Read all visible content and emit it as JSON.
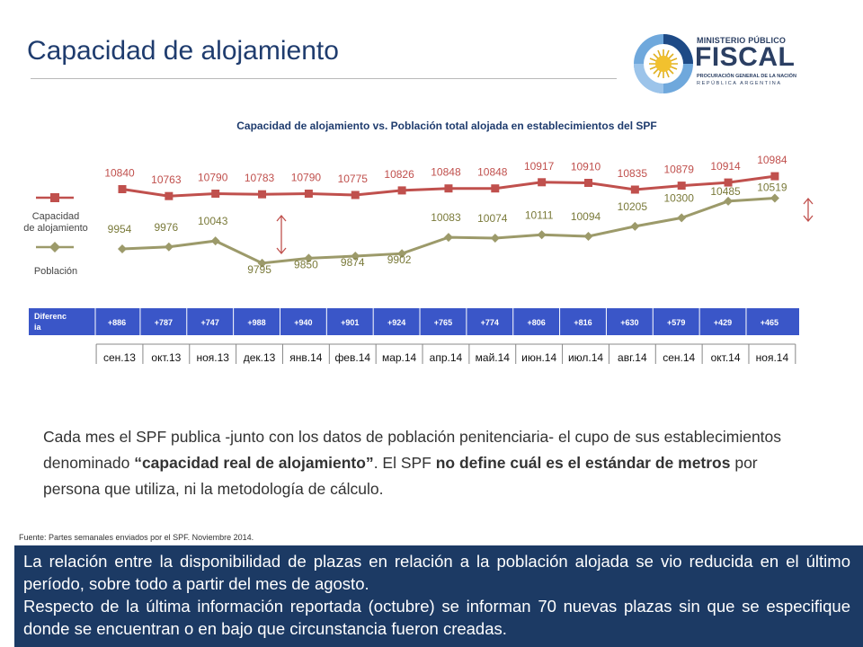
{
  "page": {
    "title": "Capacidad de alojamiento",
    "source": "Fuente: Partes semanales enviados por el SPF. Noviembre 2014."
  },
  "logo": {
    "line1": "MINISTERIO PÚBLICO",
    "line2": "FISCAL",
    "line3": "PROCURACIÓN GENERAL DE LA NACIÓN",
    "line4": "REPÚBLICA ARGENTINA"
  },
  "paragraph": {
    "part1": "Cada mes el SPF publica -junto con los datos de población penitenciaria- el cupo de sus establecimientos denominado ",
    "bold1": "“capacidad real de alojamiento”",
    "part2": ". El SPF ",
    "bold2": "no define cuál es el estándar de metros",
    "part3": " por persona que utiliza, ni la metodología de cálculo."
  },
  "bottom_box": {
    "p1": "La relación entre la disponibilidad de plazas en relación a la población alojada se vio reducida en el último período, sobre todo a partir del mes de agosto.",
    "p2": "Respecto de la última información reportada (octubre) se informan 70 nuevas plazas sin que se especifique donde se encuentran o en bajo que circunstancia fueron creadas."
  },
  "colors": {
    "capacity": "#c0504d",
    "population": "#9c9a6a",
    "table_header": "#3a56c8",
    "title": "#1f3c6e",
    "box": "#1c3a64"
  },
  "chart_data": {
    "type": "line",
    "title": "Capacidad de alojamiento vs. Población total alojada en establecimientos del SPF",
    "categories": [
      "сен.13",
      "окт.13",
      "ноя.13",
      "дек.13",
      "янв.14",
      "фев.14",
      "мар.14",
      "апр.14",
      "май.14",
      "июн.14",
      "июл.14",
      "авг.14",
      "сен.14",
      "окт.14",
      "ноя.14"
    ],
    "series": [
      {
        "name": "Capacidad de alojamiento",
        "color": "#c0504d",
        "values": [
          10840,
          10763,
          10790,
          10783,
          10790,
          10775,
          10826,
          10848,
          10848,
          10917,
          10910,
          10835,
          10879,
          10914,
          10984
        ]
      },
      {
        "name": "Población",
        "color": "#9c9a6a",
        "values": [
          9954,
          9976,
          10043,
          9795,
          9850,
          9874,
          9902,
          10083,
          10074,
          10111,
          10094,
          10205,
          10300,
          10485,
          10519
        ]
      }
    ],
    "difference": {
      "label": "Diferencia",
      "values": [
        "+886",
        "+787",
        "+747",
        "+988",
        "+940",
        "+901",
        "+924",
        "+765",
        "+774",
        "+806",
        "+816",
        "+630",
        "+579",
        "+429",
        "+465"
      ]
    },
    "legend_position": "left",
    "grid": false
  }
}
